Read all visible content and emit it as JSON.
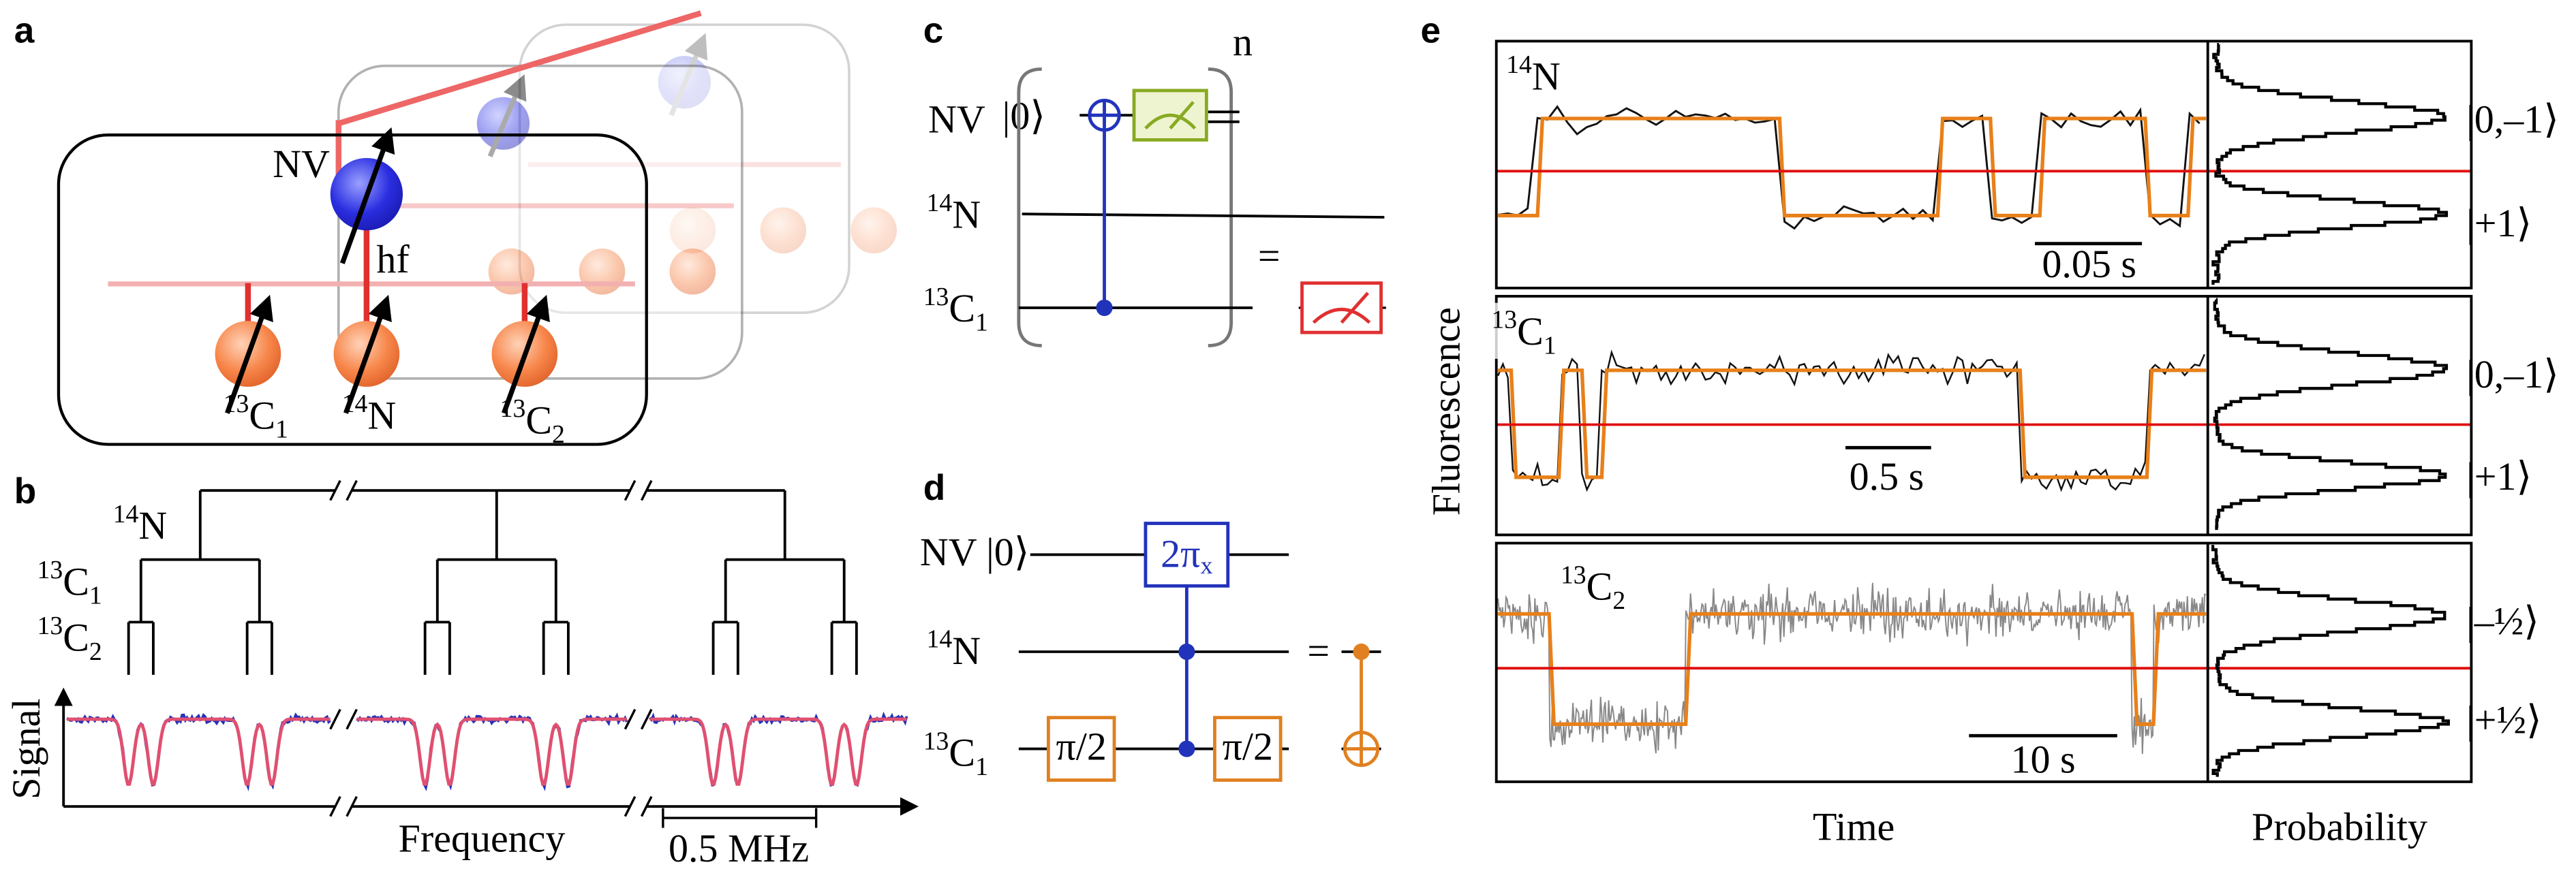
{
  "panels": {
    "a": {
      "label": "a",
      "nv": "NV",
      "hf": "hf",
      "nuclei": [
        {
          "sup": "13",
          "base": "C",
          "sub": "1"
        },
        {
          "sup": "14",
          "base": "N"
        },
        {
          "sup": "13",
          "base": "C",
          "sub": "2"
        }
      ]
    },
    "b": {
      "label": "b",
      "tree": [
        {
          "sup": "14",
          "base": "N"
        },
        {
          "sup": "13",
          "base": "C",
          "sub": "1"
        },
        {
          "sup": "13",
          "base": "C",
          "sub": "2"
        }
      ],
      "y_axis": "Signal",
      "x_axis": "Frequency",
      "scale": "0.5 MHz"
    },
    "c": {
      "label": "c",
      "nv": "NV",
      "ket": "|0⟩",
      "repeat": "n",
      "n14": {
        "sup": "14",
        "base": "N"
      },
      "c13": {
        "sup": "13",
        "base": "C",
        "sub": "1"
      },
      "equals": "="
    },
    "d": {
      "label": "d",
      "nv": "NV |0⟩",
      "rotation": {
        "base": "2π",
        "sub": "x"
      },
      "n14": {
        "sup": "14",
        "base": "N"
      },
      "c13": {
        "sup": "13",
        "base": "C",
        "sub": "1"
      },
      "half": [
        "π/2",
        "π/2"
      ],
      "equals": "="
    },
    "e": {
      "label": "e",
      "y_axis": "Fluorescence",
      "x_axis": "Time",
      "side_axis": "Probability",
      "traces": [
        {
          "nucleus": {
            "sup": "14",
            "base": "N"
          },
          "scale": "0.05 s",
          "states": [
            "|0,–1⟩",
            "|+1⟩"
          ]
        },
        {
          "nucleus": {
            "sup": "13",
            "base": "C",
            "sub": "1"
          },
          "scale": "0.5 s",
          "states": [
            "|0,–1⟩",
            "|+1⟩"
          ]
        },
        {
          "nucleus": {
            "sup": "13",
            "base": "C",
            "sub": "2"
          },
          "scale": "10 s",
          "states": [
            "|–½⟩",
            "|+½⟩"
          ]
        }
      ]
    }
  }
}
